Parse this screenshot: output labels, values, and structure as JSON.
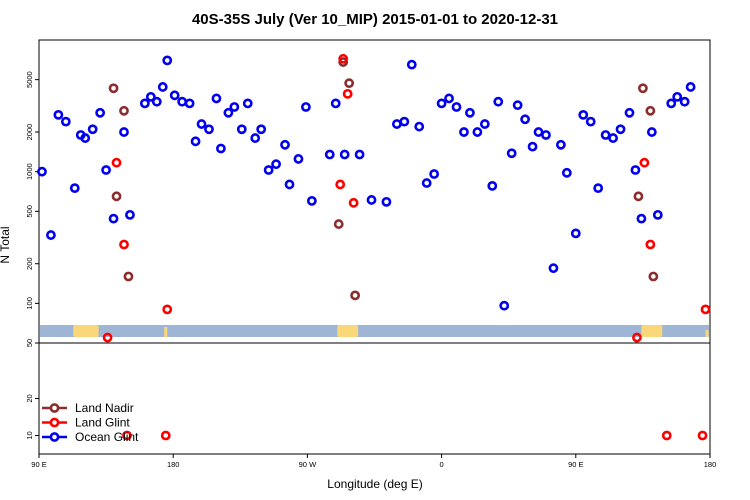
{
  "chart_data": {
    "type": "scatter",
    "title": "40S-35S July (Ver 10_MIP)   2015-01-01 to 2020-12-31",
    "xlabel": "Longitude (deg E)",
    "ylabel": "N Total",
    "x_ticks": [
      "90 E",
      "180",
      "90 W",
      "0",
      "90 E",
      "180"
    ],
    "x_tick_values": [
      90,
      180,
      270,
      360,
      450,
      540
    ],
    "xlim": [
      90,
      540
    ],
    "upper_panel": {
      "scale": "log",
      "ylim": [
        50,
        10000
      ],
      "y_ticks": [
        "50",
        "100",
        "200",
        "500",
        "1000",
        "2000",
        "5000"
      ],
      "y_tick_values": [
        50,
        100,
        200,
        500,
        1000,
        2000,
        5000
      ]
    },
    "lower_panel": {
      "scale": "linear",
      "ylim": [
        5,
        35
      ],
      "y_ticks": [
        "10",
        "20"
      ],
      "y_tick_values": [
        10,
        20
      ]
    },
    "legend": [
      {
        "name": "Land Nadir",
        "color": "#8b2d2d"
      },
      {
        "name": "Land Glint",
        "color": "#ff0000"
      },
      {
        "name": "Ocean Glint",
        "color": "#0000ee"
      }
    ],
    "legend_position": "bottom-left",
    "map_colors": {
      "ocean": "#9fb5d6",
      "land": "#fad87a"
    },
    "series": [
      {
        "name": "Ocean Glint",
        "color": "#0000ee",
        "points": [
          [
            92,
            1000
          ],
          [
            98,
            330
          ],
          [
            103,
            2700
          ],
          [
            108,
            2400
          ],
          [
            114,
            750
          ],
          [
            118,
            1900
          ],
          [
            121,
            1800
          ],
          [
            126,
            2100
          ],
          [
            131,
            2800
          ],
          [
            135,
            1030
          ],
          [
            140,
            440
          ],
          [
            147,
            2000
          ],
          [
            151,
            470
          ],
          [
            161,
            3300
          ],
          [
            165,
            3700
          ],
          [
            169,
            3400
          ],
          [
            173,
            4400
          ],
          [
            176,
            7000
          ],
          [
            181,
            3800
          ],
          [
            186,
            3400
          ],
          [
            191,
            3300
          ],
          [
            195,
            1700
          ],
          [
            199,
            2300
          ],
          [
            204,
            2100
          ],
          [
            209,
            3600
          ],
          [
            212,
            1500
          ],
          [
            217,
            2800
          ],
          [
            221,
            3100
          ],
          [
            226,
            2100
          ],
          [
            230,
            3300
          ],
          [
            235,
            1800
          ],
          [
            239,
            2100
          ],
          [
            244,
            1030
          ],
          [
            249,
            1140
          ],
          [
            255,
            1600
          ],
          [
            258,
            800
          ],
          [
            264,
            1250
          ],
          [
            269,
            3100
          ],
          [
            273,
            600
          ],
          [
            285,
            1350
          ],
          [
            289,
            3300
          ],
          [
            295,
            1350
          ],
          [
            305,
            1350
          ],
          [
            313,
            610
          ],
          [
            323,
            590
          ],
          [
            330,
            2300
          ],
          [
            335,
            2400
          ],
          [
            340,
            6500
          ],
          [
            345,
            2200
          ],
          [
            350,
            820
          ],
          [
            355,
            960
          ],
          [
            360,
            3300
          ],
          [
            365,
            3600
          ],
          [
            370,
            3100
          ],
          [
            375,
            2000
          ],
          [
            379,
            2800
          ],
          [
            384,
            2000
          ],
          [
            389,
            2300
          ],
          [
            394,
            780
          ],
          [
            398,
            3400
          ],
          [
            402,
            96
          ],
          [
            407,
            1380
          ],
          [
            411,
            3200
          ],
          [
            416,
            2500
          ],
          [
            421,
            1550
          ],
          [
            425,
            2000
          ],
          [
            430,
            1900
          ],
          [
            435,
            185
          ],
          [
            440,
            1600
          ],
          [
            444,
            980
          ],
          [
            450,
            340
          ],
          [
            455,
            2700
          ],
          [
            460,
            2400
          ],
          [
            465,
            750
          ],
          [
            470,
            1900
          ],
          [
            475,
            1800
          ],
          [
            480,
            2100
          ],
          [
            486,
            2800
          ],
          [
            490,
            1030
          ],
          [
            494,
            440
          ],
          [
            501,
            2000
          ],
          [
            505,
            470
          ],
          [
            514,
            3300
          ],
          [
            518,
            3700
          ],
          [
            523,
            3400
          ],
          [
            527,
            4400
          ]
        ]
      },
      {
        "name": "Land Nadir",
        "color": "#8b2d2d",
        "points": [
          [
            140,
            4300
          ],
          [
            142,
            650
          ],
          [
            147,
            2900
          ],
          [
            150,
            160
          ],
          [
            291,
            400
          ],
          [
            294,
            6800
          ],
          [
            298,
            4700
          ],
          [
            302,
            115
          ],
          [
            492,
            650
          ],
          [
            495,
            4300
          ],
          [
            500,
            2900
          ],
          [
            502,
            160
          ]
        ]
      },
      {
        "name": "Land Glint",
        "color": "#ff0000",
        "points": [
          [
            136,
            55
          ],
          [
            142,
            1170
          ],
          [
            147,
            280
          ],
          [
            176,
            90
          ],
          [
            292,
            800
          ],
          [
            294,
            7200
          ],
          [
            297,
            3900
          ],
          [
            301,
            580
          ],
          [
            491,
            55
          ],
          [
            496,
            1170
          ],
          [
            500,
            280
          ],
          [
            537,
            90
          ]
        ],
        "lower_points": [
          [
            149,
            10
          ],
          [
            175,
            10
          ],
          [
            511,
            10
          ],
          [
            535,
            10
          ]
        ]
      }
    ]
  }
}
